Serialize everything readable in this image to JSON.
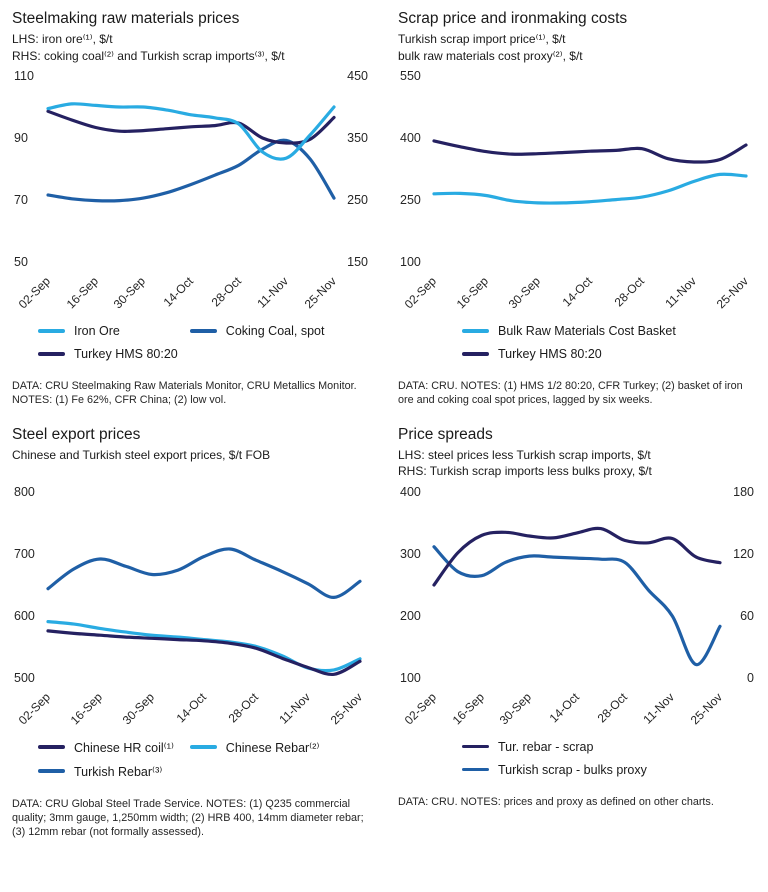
{
  "colors": {
    "light_blue": "#29abe2",
    "mid_blue": "#1f5fa6",
    "navy": "#252161"
  },
  "chart_data": [
    {
      "type": "line",
      "title": "Steelmaking raw materials prices",
      "subtitles": [
        "LHS: iron ore⁽¹⁾, $/t",
        "RHS: coking coal⁽²⁾ and Turkish scrap imports⁽³⁾, $/t"
      ],
      "x": [
        "02-Sep",
        "09-Sep",
        "16-Sep",
        "23-Sep",
        "30-Sep",
        "07-Oct",
        "14-Oct",
        "21-Oct",
        "28-Oct",
        "04-Nov",
        "11-Nov",
        "18-Nov",
        "25-Nov"
      ],
      "x_shown": [
        "02-Sep",
        "16-Sep",
        "30-Sep",
        "14-Oct",
        "28-Oct",
        "11-Nov",
        "25-Nov"
      ],
      "axes": {
        "left": {
          "range": [
            50,
            110
          ],
          "ticks": [
            "110",
            "90",
            "70",
            "50"
          ]
        },
        "right": {
          "range": [
            150,
            450
          ],
          "ticks": [
            "450",
            "350",
            "250",
            "150"
          ]
        }
      },
      "series": [
        {
          "name": "Coking Coal, spot",
          "axis": "right",
          "color": "mid_blue",
          "values": [
            258,
            252,
            249,
            249,
            253,
            262,
            275,
            290,
            306,
            332,
            346,
            316,
            253
          ]
        },
        {
          "name": "Turkey HMS 80:20",
          "axis": "right",
          "color": "navy",
          "values": [
            393,
            379,
            367,
            361,
            362,
            365,
            368,
            370,
            374,
            350,
            342,
            348,
            383
          ]
        },
        {
          "name": "Iron Ore",
          "axis": "left",
          "color": "light_blue",
          "values": [
            99.5,
            101,
            100.5,
            100,
            100,
            99,
            97.5,
            96.5,
            94.5,
            85.5,
            83.5,
            91,
            100
          ]
        }
      ],
      "legend": {
        "columns": 2,
        "items": [
          {
            "label": "Iron Ore",
            "color": "light_blue"
          },
          {
            "label": "Coking Coal, spot",
            "color": "mid_blue"
          },
          {
            "label": "Turkey HMS 80:20",
            "color": "navy"
          }
        ]
      },
      "notes": "DATA: CRU Steelmaking Raw Materials Monitor, CRU Metallics Monitor.  NOTES: (1) Fe 62%, CFR China; (2) low vol."
    },
    {
      "type": "line",
      "title": "Scrap price and ironmaking costs",
      "subtitles": [
        "Turkish scrap import price⁽¹⁾, $/t",
        "bulk raw materials cost proxy⁽²⁾, $/t"
      ],
      "x": [
        "02-Sep",
        "09-Sep",
        "16-Sep",
        "23-Sep",
        "30-Sep",
        "07-Oct",
        "14-Oct",
        "21-Oct",
        "28-Oct",
        "04-Nov",
        "11-Nov",
        "18-Nov",
        "25-Nov"
      ],
      "x_shown": [
        "02-Sep",
        "16-Sep",
        "30-Sep",
        "14-Oct",
        "28-Oct",
        "11-Nov",
        "25-Nov"
      ],
      "axes": {
        "left": {
          "range": [
            100,
            550
          ],
          "ticks": [
            "550",
            "400",
            "250",
            "100"
          ]
        }
      },
      "series": [
        {
          "name": "Bulk Raw Materials Cost Basket",
          "axis": "left",
          "color": "light_blue",
          "values": [
            265,
            266,
            261,
            248,
            243,
            243,
            246,
            251,
            257,
            272,
            295,
            312,
            308
          ]
        },
        {
          "name": "Turkey HMS 80:20",
          "axis": "left",
          "color": "navy",
          "values": [
            393,
            379,
            367,
            361,
            362,
            365,
            368,
            370,
            374,
            350,
            342,
            348,
            383
          ]
        }
      ],
      "legend": {
        "columns": 1,
        "items": [
          {
            "label": "Bulk Raw Materials Cost Basket",
            "color": "light_blue"
          },
          {
            "label": "Turkey HMS 80:20",
            "color": "navy"
          }
        ]
      },
      "notes": "DATA: CRU.  NOTES: (1) HMS 1/2 80:20, CFR Turkey; (2) basket of iron ore and coking coal spot prices, lagged by six weeks."
    },
    {
      "type": "line",
      "title": "Steel export prices",
      "subtitles": [
        "Chinese and Turkish steel export prices, $/t FOB"
      ],
      "x": [
        "02-Sep",
        "09-Sep",
        "16-Sep",
        "23-Sep",
        "30-Sep",
        "07-Oct",
        "14-Oct",
        "21-Oct",
        "28-Oct",
        "04-Nov",
        "11-Nov",
        "18-Nov",
        "25-Nov"
      ],
      "x_shown": [
        "02-Sep",
        "16-Sep",
        "30-Sep",
        "14-Oct",
        "28-Oct",
        "11-Nov",
        "25-Nov"
      ],
      "axes": {
        "left": {
          "range": [
            500,
            800
          ],
          "ticks": [
            "800",
            "700",
            "600",
            "500"
          ]
        }
      },
      "series": [
        {
          "name": "Chinese Rebar",
          "axis": "left",
          "color": "light_blue",
          "values": [
            591,
            587,
            580,
            574,
            569,
            566,
            562,
            558,
            551,
            536,
            516,
            513,
            531
          ]
        },
        {
          "name": "Chinese HR coil",
          "axis": "left",
          "color": "navy",
          "values": [
            576,
            572,
            569,
            566,
            564,
            562,
            560,
            556,
            548,
            532,
            517,
            506,
            527
          ]
        },
        {
          "name": "Turkish Rebar",
          "axis": "left",
          "color": "mid_blue",
          "values": [
            644,
            676,
            692,
            680,
            667,
            674,
            696,
            708,
            690,
            672,
            652,
            630,
            656
          ]
        }
      ],
      "legend": {
        "columns": 2,
        "items": [
          {
            "label": "Chinese HR coil⁽¹⁾",
            "color": "navy"
          },
          {
            "label": "Chinese Rebar⁽²⁾",
            "color": "light_blue"
          },
          {
            "label": "Turkish Rebar⁽³⁾",
            "color": "mid_blue"
          }
        ]
      },
      "notes": "DATA: CRU Global Steel Trade Service. NOTES: (1) Q235 commercial quality; 3mm gauge, 1,250mm width; (2) HRB 400, 14mm diameter rebar; (3) 12mm rebar (not formally assessed)."
    },
    {
      "type": "line",
      "title": "Price spreads",
      "subtitles": [
        "LHS: steel prices less Turkish scrap imports, $/t",
        "RHS: Turkish scrap imports less bulks proxy, $/t"
      ],
      "x": [
        "02-Sep",
        "09-Sep",
        "16-Sep",
        "23-Sep",
        "30-Sep",
        "07-Oct",
        "14-Oct",
        "21-Oct",
        "28-Oct",
        "04-Nov",
        "11-Nov",
        "18-Nov",
        "25-Nov"
      ],
      "x_shown": [
        "02-Sep",
        "16-Sep",
        "30-Sep",
        "14-Oct",
        "28-Oct",
        "11-Nov",
        "25-Nov"
      ],
      "axes": {
        "left": {
          "range": [
            100,
            400
          ],
          "ticks": [
            "400",
            "300",
            "200",
            "100"
          ]
        },
        "right": {
          "range": [
            0,
            180
          ],
          "ticks": [
            "180",
            "120",
            "60",
            "0"
          ]
        }
      },
      "series": [
        {
          "name": "Turkish scrap - bulks proxy",
          "axis": "right",
          "color": "mid_blue",
          "values": [
            127,
            103,
            99,
            112,
            118,
            117,
            116,
            115,
            112,
            85,
            60,
            13,
            50
          ]
        },
        {
          "name": "Tur. rebar - scrap",
          "axis": "left",
          "color": "navy",
          "values": [
            250,
            302,
            330,
            335,
            329,
            326,
            334,
            341,
            322,
            318,
            325,
            295,
            286
          ]
        }
      ],
      "legend": {
        "columns": 1,
        "items": [
          {
            "label": "Tur. rebar - scrap",
            "color": "navy"
          },
          {
            "label": "Turkish scrap - bulks proxy",
            "color": "mid_blue"
          }
        ]
      },
      "notes": "DATA: CRU.  NOTES: prices and proxy as defined on other charts."
    }
  ]
}
